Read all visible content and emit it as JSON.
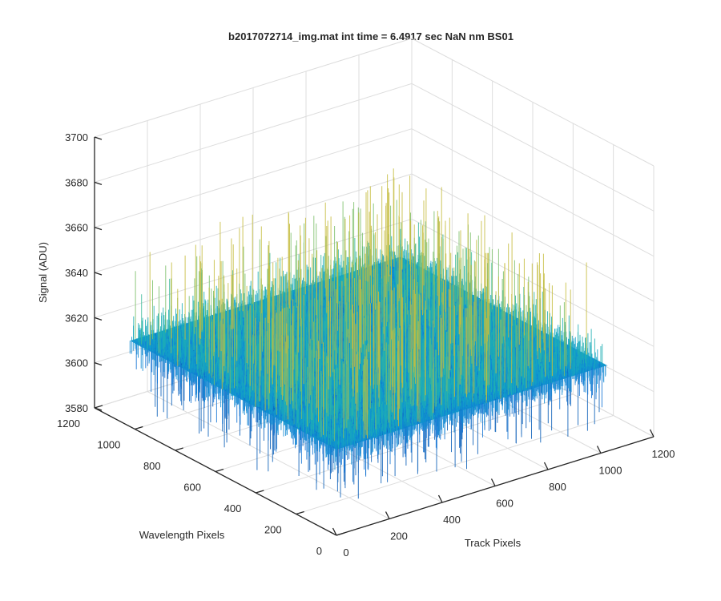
{
  "chart_data": {
    "type": "surface3d",
    "title": "b2017072714_img.mat int time = 6.4917 sec  NaN nm BS01",
    "xlabel": "Track Pixels",
    "ylabel": "Wavelength Pixels",
    "zlabel": "Signal (ADU)",
    "xlim": [
      0,
      1200
    ],
    "ylim": [
      0,
      1200
    ],
    "zlim": [
      3580,
      3700
    ],
    "xticks": [
      "0",
      "200",
      "400",
      "600",
      "800",
      "1000",
      "1200"
    ],
    "yticks": [
      "0",
      "200",
      "400",
      "600",
      "800",
      "1000",
      "1200"
    ],
    "zticks": [
      "3580",
      "3600",
      "3620",
      "3640",
      "3660",
      "3680",
      "3700"
    ],
    "grid": true,
    "surface": {
      "x_range": [
        0,
        1024
      ],
      "y_range": [
        0,
        1024
      ],
      "mean_signal": 3618,
      "noise_low": 3590,
      "noise_high": 3660,
      "colormap": "parula"
    }
  }
}
